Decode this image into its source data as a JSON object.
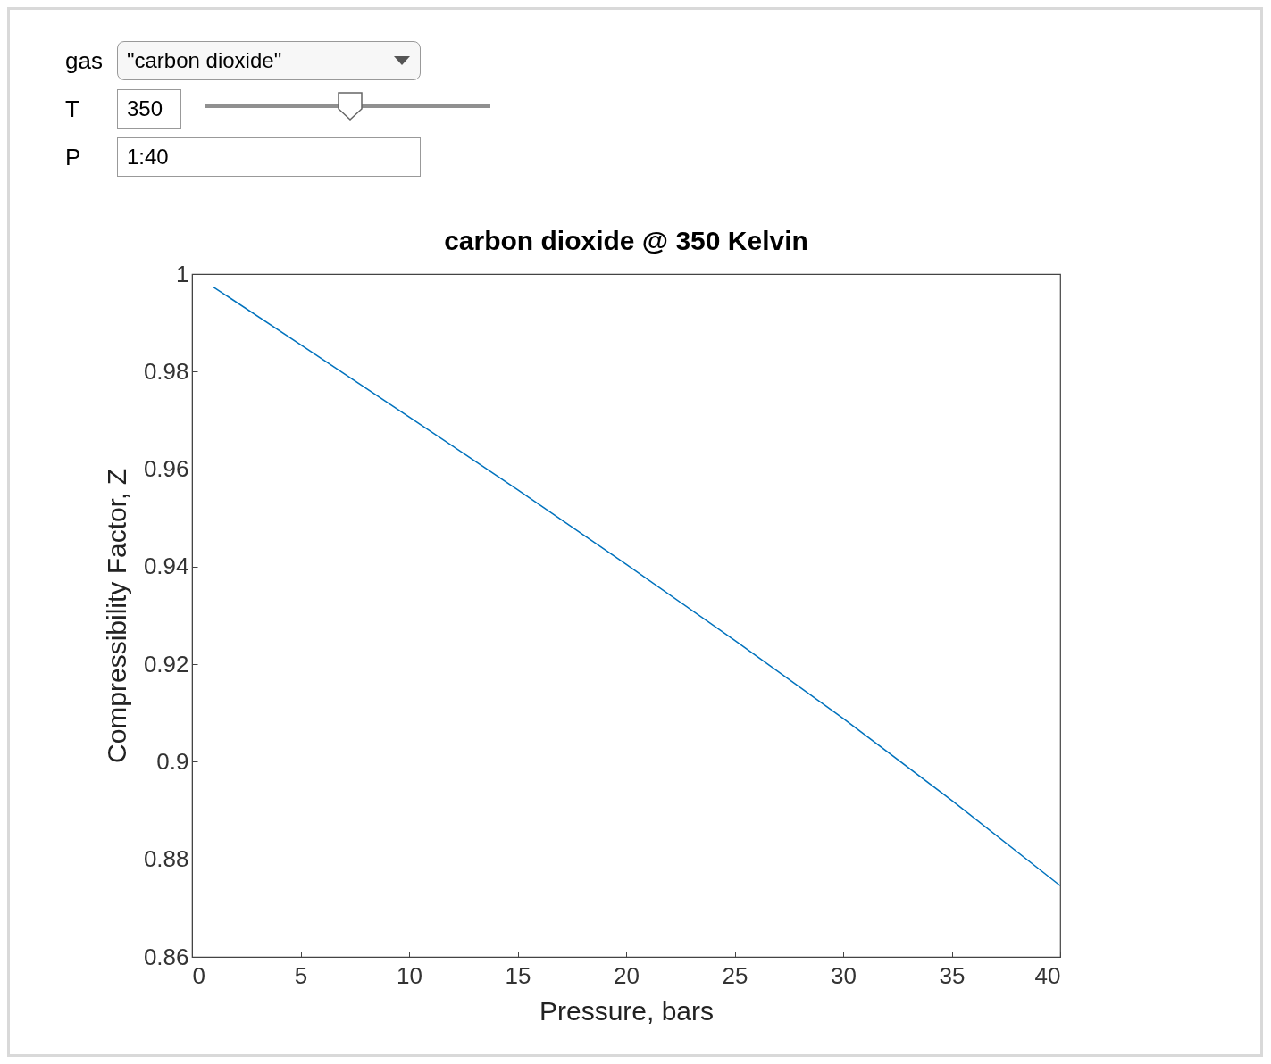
{
  "chart_data": {
    "type": "line",
    "title": "carbon dioxide @ 350 Kelvin",
    "xlabel": "Pressure, bars",
    "ylabel": "Compressibility Factor, Z",
    "annotations": [
      "gas",
      "\"carbon dioxide\"",
      "T",
      "350",
      "P",
      "1:40"
    ],
    "x": [
      1,
      5,
      10,
      15,
      20,
      25,
      30,
      35,
      40
    ],
    "series": [
      {
        "color": "#0072bd",
        "values": [
          0.9973,
          0.9855,
          0.9707,
          0.9558,
          0.9405,
          0.9249,
          0.9089,
          0.8921,
          0.8746
        ]
      }
    ],
    "xlim": [
      0,
      40
    ],
    "xticks": [
      0,
      5,
      10,
      15,
      20,
      25,
      30,
      35,
      40
    ],
    "ylim": [
      0.86,
      1
    ],
    "yticks": [
      0.86,
      0.88,
      0.9,
      0.92,
      0.94,
      0.96,
      0.98,
      1
    ],
    "grid": false,
    "legend": false,
    "marker": "none",
    "line_style": "solid"
  }
}
